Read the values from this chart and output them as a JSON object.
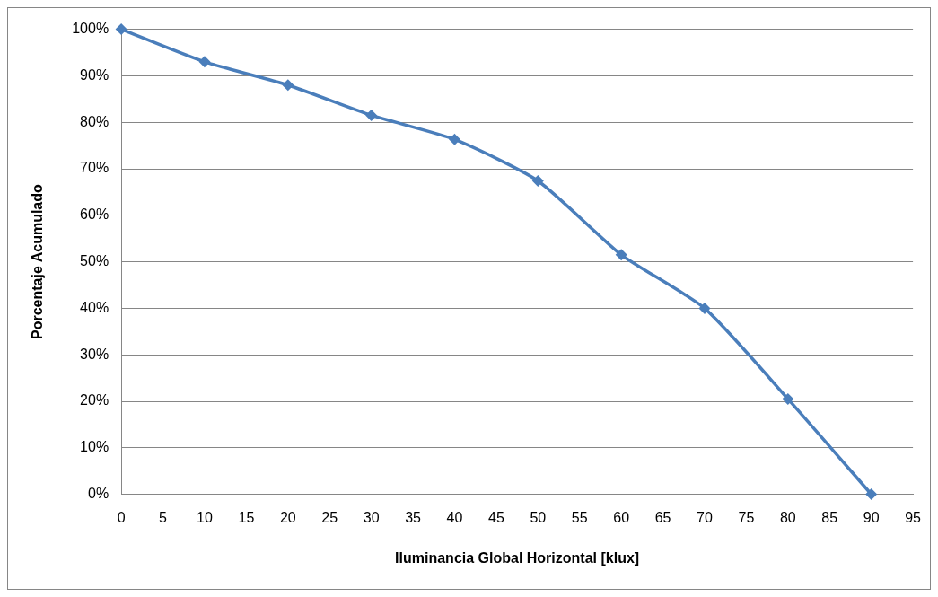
{
  "chart_data": {
    "type": "line",
    "xlabel": "Iluminancia Global Horizontal [klux]",
    "ylabel": "Porcentaje Acumulado",
    "x": [
      0,
      10,
      20,
      30,
      40,
      50,
      60,
      70,
      80,
      90
    ],
    "series": [
      {
        "color": "#4a7ebb",
        "values": [
          100,
          93,
          88,
          81.5,
          76.3,
          67.4,
          51.5,
          40,
          20.5,
          0
        ]
      }
    ],
    "xlim": [
      0,
      95
    ],
    "xticks": [
      0,
      5,
      10,
      15,
      20,
      25,
      30,
      35,
      40,
      45,
      50,
      55,
      60,
      65,
      70,
      75,
      80,
      85,
      90,
      95
    ],
    "ylim": [
      0,
      100
    ],
    "yticks": [
      {
        "value": 0,
        "label": "0%"
      },
      {
        "value": 10,
        "label": "10%"
      },
      {
        "value": 20,
        "label": "20%"
      },
      {
        "value": 30,
        "label": "30%"
      },
      {
        "value": 40,
        "label": "40%"
      },
      {
        "value": 50,
        "label": "50%"
      },
      {
        "value": 60,
        "label": "60%"
      },
      {
        "value": 70,
        "label": "70%"
      },
      {
        "value": 80,
        "label": "80%"
      },
      {
        "value": 90,
        "label": "90%"
      },
      {
        "value": 100,
        "label": "100%"
      }
    ],
    "grid": "y",
    "marker": "diamond",
    "line_style": "solid",
    "legend": false
  }
}
